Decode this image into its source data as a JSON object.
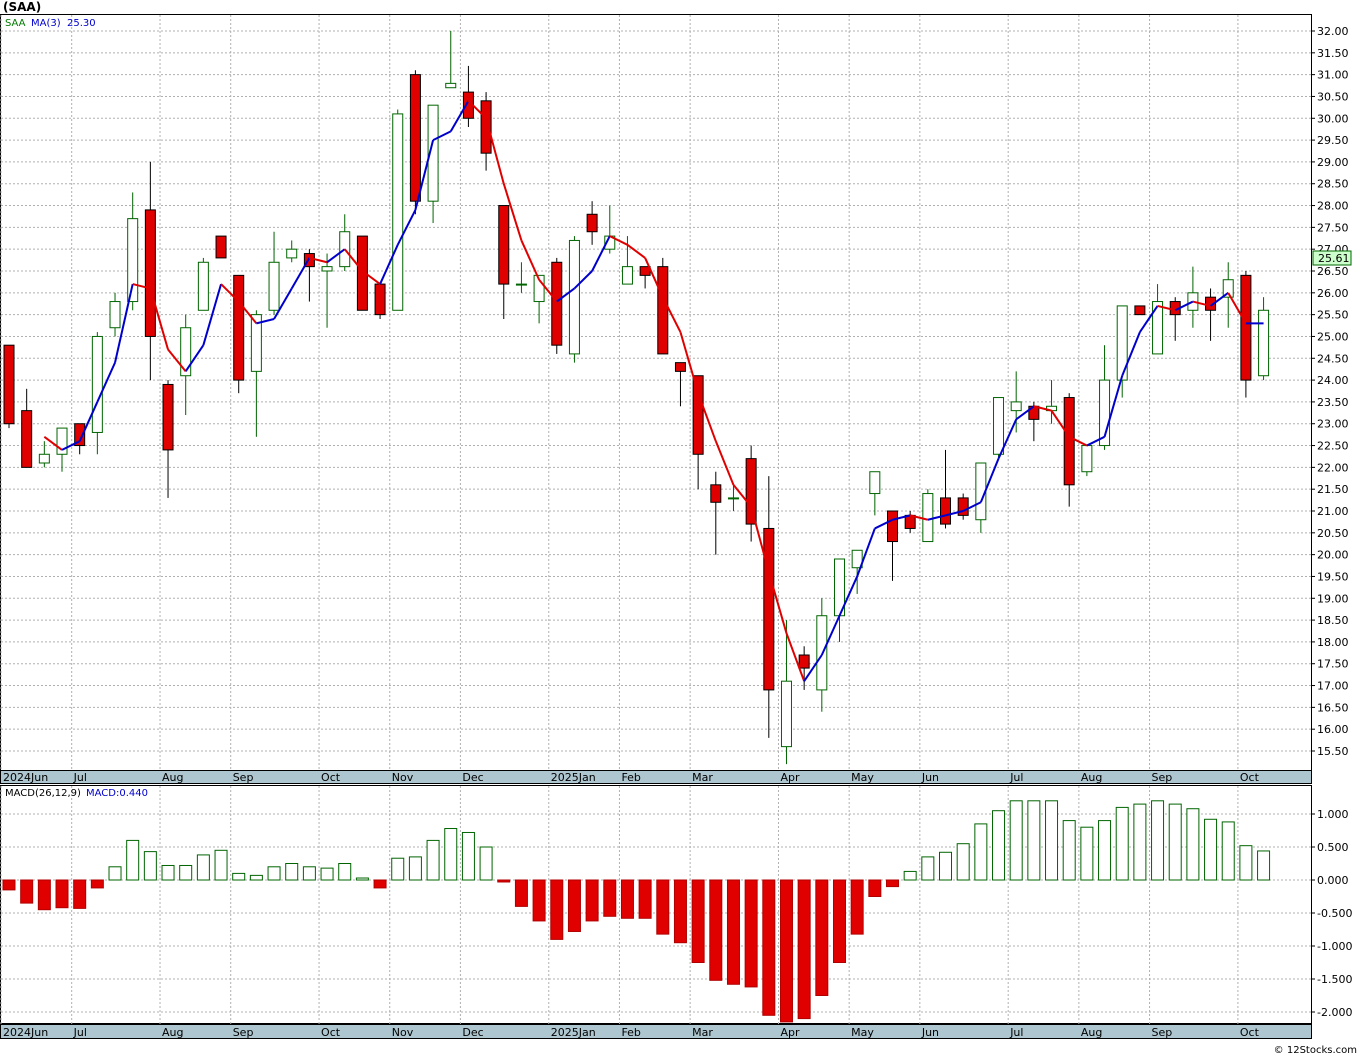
{
  "header": {
    "symbol_label": "(SAA)",
    "price_legend": {
      "symbol": "SAA",
      "ma_label": "MA(3)",
      "ma_value": "25.30"
    },
    "macd_legend": {
      "label": "MACD(26,12,9)",
      "value_label": "MACD:0.440"
    },
    "last_price_tag": "25.61",
    "footer": "© 12Stocks.com"
  },
  "colors": {
    "up": "#006400",
    "down": "#e00000",
    "ma_up": "#0000cc",
    "ma_down": "#e00000",
    "grid": "#b0b0b0",
    "axis_band": "#aec6cf",
    "price_tag_bg": "#ccffcc"
  },
  "chart_data": [
    {
      "type": "candlestick",
      "title": "(SAA)",
      "ylim": [
        15.0,
        32.3
      ],
      "yticks": [
        "15.50",
        "16.00",
        "16.50",
        "17.00",
        "17.50",
        "18.00",
        "18.50",
        "19.00",
        "19.50",
        "20.00",
        "20.50",
        "21.00",
        "21.50",
        "22.00",
        "22.50",
        "23.00",
        "23.50",
        "24.00",
        "24.50",
        "25.00",
        "25.50",
        "26.00",
        "26.50",
        "27.00",
        "27.50",
        "28.00",
        "28.50",
        "29.00",
        "29.50",
        "30.00",
        "30.50",
        "31.00",
        "31.50",
        "32.00"
      ],
      "x_labels": [
        {
          "label": "2024Jun",
          "week": 0
        },
        {
          "label": "Jul",
          "week": 4
        },
        {
          "label": "Aug",
          "week": 9
        },
        {
          "label": "Sep",
          "week": 13
        },
        {
          "label": "Oct",
          "week": 18
        },
        {
          "label": "Nov",
          "week": 22
        },
        {
          "label": "Dec",
          "week": 26
        },
        {
          "label": "2025Jan",
          "week": 31
        },
        {
          "label": "Feb",
          "week": 35
        },
        {
          "label": "Mar",
          "week": 39
        },
        {
          "label": "Apr",
          "week": 44
        },
        {
          "label": "May",
          "week": 48
        },
        {
          "label": "Jun",
          "week": 52
        },
        {
          "label": "Jul",
          "week": 57
        },
        {
          "label": "Aug",
          "week": 61
        },
        {
          "label": "Sep",
          "week": 65
        },
        {
          "label": "Oct",
          "week": 70
        }
      ],
      "ohlc": [
        [
          24.8,
          24.8,
          22.9,
          23.0
        ],
        [
          23.3,
          23.8,
          22.0,
          22.0
        ],
        [
          22.1,
          22.6,
          22.0,
          22.3
        ],
        [
          22.3,
          22.9,
          21.9,
          22.9
        ],
        [
          23.0,
          23.0,
          22.3,
          22.5
        ],
        [
          22.8,
          25.1,
          22.3,
          25.0
        ],
        [
          25.2,
          26.0,
          25.0,
          25.8
        ],
        [
          25.8,
          28.3,
          25.6,
          27.7
        ],
        [
          27.9,
          29.0,
          24.0,
          25.0
        ],
        [
          23.9,
          24.0,
          21.3,
          22.4
        ],
        [
          24.1,
          25.5,
          23.2,
          25.2
        ],
        [
          25.6,
          26.8,
          25.6,
          26.7
        ],
        [
          27.3,
          27.3,
          26.8,
          26.8
        ],
        [
          26.4,
          26.4,
          23.7,
          24.0
        ],
        [
          24.2,
          25.6,
          22.7,
          25.5
        ],
        [
          25.6,
          27.4,
          25.5,
          26.7
        ],
        [
          26.8,
          27.2,
          26.7,
          27.0
        ],
        [
          26.9,
          27.0,
          25.8,
          26.6
        ],
        [
          26.5,
          26.9,
          25.2,
          26.6
        ],
        [
          26.6,
          27.8,
          26.5,
          27.4
        ],
        [
          27.3,
          27.3,
          25.6,
          25.6
        ],
        [
          26.2,
          26.2,
          25.4,
          25.5
        ],
        [
          25.6,
          30.2,
          25.6,
          30.1
        ],
        [
          31.0,
          31.1,
          27.8,
          28.1
        ],
        [
          28.1,
          30.3,
          27.6,
          30.3
        ],
        [
          30.7,
          32.0,
          30.7,
          30.8
        ],
        [
          30.6,
          31.2,
          29.8,
          30.0
        ],
        [
          30.4,
          30.6,
          28.8,
          29.2
        ],
        [
          28.0,
          28.0,
          25.4,
          26.2
        ],
        [
          26.2,
          26.7,
          26.0,
          26.2
        ],
        [
          25.8,
          26.3,
          25.3,
          26.4
        ],
        [
          26.7,
          26.8,
          24.6,
          24.8
        ],
        [
          24.6,
          27.3,
          24.4,
          27.2
        ],
        [
          27.8,
          28.1,
          27.1,
          27.4
        ],
        [
          27.0,
          28.0,
          26.9,
          27.3
        ],
        [
          26.2,
          27.3,
          26.2,
          26.6
        ],
        [
          26.6,
          26.6,
          26.1,
          26.4
        ],
        [
          26.6,
          26.8,
          24.6,
          24.6
        ],
        [
          24.4,
          24.4,
          23.4,
          24.2
        ],
        [
          24.1,
          24.1,
          21.5,
          22.3
        ],
        [
          21.6,
          21.9,
          20.0,
          21.2
        ],
        [
          21.3,
          21.6,
          21.0,
          21.3
        ],
        [
          22.2,
          22.5,
          20.3,
          20.7
        ],
        [
          20.6,
          21.8,
          15.8,
          16.9
        ],
        [
          15.6,
          18.5,
          15.2,
          17.1
        ],
        [
          17.7,
          17.9,
          16.9,
          17.4
        ],
        [
          16.9,
          19.0,
          16.4,
          18.6
        ],
        [
          18.6,
          19.9,
          18.0,
          19.9
        ],
        [
          19.7,
          20.1,
          19.1,
          20.1
        ],
        [
          21.4,
          21.9,
          20.9,
          21.9
        ],
        [
          21.0,
          21.0,
          19.4,
          20.3
        ],
        [
          20.9,
          21.0,
          20.5,
          20.6
        ],
        [
          20.3,
          21.5,
          20.3,
          21.4
        ],
        [
          21.3,
          22.4,
          20.6,
          20.7
        ],
        [
          21.3,
          21.4,
          20.8,
          20.9
        ],
        [
          20.8,
          22.1,
          20.5,
          22.1
        ],
        [
          22.3,
          23.6,
          22.2,
          23.6
        ],
        [
          23.3,
          24.2,
          22.8,
          23.5
        ],
        [
          23.4,
          23.5,
          22.6,
          23.1
        ],
        [
          23.3,
          24.0,
          23.0,
          23.4
        ],
        [
          23.6,
          23.7,
          21.1,
          21.6
        ],
        [
          21.9,
          22.5,
          21.8,
          22.5
        ],
        [
          22.5,
          24.8,
          22.4,
          24.0
        ],
        [
          24.0,
          25.7,
          23.6,
          25.7
        ],
        [
          25.7,
          25.7,
          25.5,
          25.5
        ],
        [
          24.6,
          26.2,
          24.6,
          25.8
        ],
        [
          25.8,
          25.9,
          24.9,
          25.5
        ],
        [
          25.6,
          26.6,
          25.2,
          26.0
        ],
        [
          25.9,
          26.1,
          24.9,
          25.6
        ],
        [
          25.9,
          26.7,
          25.2,
          26.3
        ],
        [
          26.4,
          26.5,
          23.6,
          24.0
        ],
        [
          24.1,
          25.9,
          24.0,
          25.6
        ]
      ],
      "ma3": [
        null,
        null,
        22.7,
        22.4,
        22.6,
        23.5,
        24.4,
        26.2,
        26.1,
        24.7,
        24.2,
        24.8,
        26.2,
        25.8,
        25.3,
        25.4,
        26.1,
        26.8,
        26.7,
        27.0,
        26.5,
        26.2,
        27.1,
        27.9,
        29.5,
        29.7,
        30.4,
        30.0,
        28.5,
        27.2,
        26.3,
        25.8,
        26.1,
        26.5,
        27.3,
        27.1,
        26.8,
        25.9,
        25.1,
        23.7,
        22.6,
        21.6,
        21.1,
        19.6,
        18.2,
        17.1,
        17.7,
        18.6,
        19.5,
        20.6,
        20.8,
        20.9,
        20.8,
        20.9,
        21.0,
        21.2,
        22.2,
        23.1,
        23.4,
        23.3,
        22.7,
        22.5,
        22.7,
        24.1,
        25.1,
        25.7,
        25.6,
        25.8,
        25.7,
        26.0,
        25.3,
        25.3
      ],
      "series": [
        {
          "name": "MA(3)",
          "values_key": "ma3"
        }
      ]
    },
    {
      "type": "bar",
      "title": "MACD(26,12,9)",
      "ylim": [
        -2.2,
        1.3
      ],
      "yticks": [
        "-2.000",
        "-1.500",
        "-1.000",
        "-0.500",
        "0.000",
        "0.500",
        "1.000"
      ],
      "x_labels_same_as_price": true,
      "values": [
        -0.15,
        -0.35,
        -0.45,
        -0.42,
        -0.43,
        -0.12,
        0.2,
        0.6,
        0.43,
        0.22,
        0.22,
        0.38,
        0.45,
        0.1,
        0.07,
        0.2,
        0.25,
        0.2,
        0.18,
        0.25,
        0.03,
        -0.12,
        0.33,
        0.35,
        0.6,
        0.78,
        0.72,
        0.5,
        -0.03,
        -0.4,
        -0.62,
        -0.9,
        -0.78,
        -0.62,
        -0.55,
        -0.58,
        -0.58,
        -0.82,
        -0.95,
        -1.25,
        -1.52,
        -1.58,
        -1.62,
        -2.05,
        -2.15,
        -2.1,
        -1.75,
        -1.25,
        -0.82,
        -0.25,
        -0.1,
        0.13,
        0.35,
        0.42,
        0.55,
        0.85,
        1.05,
        1.2,
        1.2,
        1.2,
        0.9,
        0.8,
        0.9,
        1.1,
        1.15,
        1.2,
        1.15,
        1.08,
        0.92,
        0.88,
        0.52,
        0.44
      ]
    }
  ]
}
